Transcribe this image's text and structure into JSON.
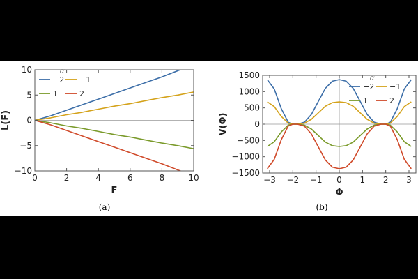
{
  "chart_data": [
    {
      "type": "line",
      "panel_label": "(a)",
      "xlabel": "F",
      "ylabel": "L(F)",
      "xlim": [
        0,
        10
      ],
      "ylim": [
        -10,
        10
      ],
      "xticks": [
        0,
        2,
        4,
        6,
        8,
        10
      ],
      "yticks": [
        -10,
        -5,
        0,
        5,
        10
      ],
      "x_tick_labels": [
        "0",
        "2",
        "4",
        "6",
        "8",
        "10"
      ],
      "y_tick_labels": [
        "−10",
        "−5",
        "0",
        "5",
        "10"
      ],
      "legend_title": "α",
      "legend_placement": "top-left",
      "series": [
        {
          "name": "−2",
          "color": "#3c6ea8",
          "x": [
            0,
            1,
            2,
            3,
            4,
            5,
            6,
            7,
            8,
            9,
            10
          ],
          "y": [
            0,
            0.9,
            2.0,
            3.1,
            4.2,
            5.3,
            6.4,
            7.5,
            8.6,
            9.8,
            11.0
          ]
        },
        {
          "name": "−1",
          "color": "#d4a21a",
          "x": [
            0,
            1,
            2,
            3,
            4,
            5,
            6,
            7,
            8,
            9,
            10
          ],
          "y": [
            0,
            0.5,
            1.1,
            1.6,
            2.2,
            2.8,
            3.3,
            3.9,
            4.5,
            5.0,
            5.6
          ]
        },
        {
          "name": "1",
          "color": "#7a9a2a",
          "x": [
            0,
            1,
            2,
            3,
            4,
            5,
            6,
            7,
            8,
            9,
            10
          ],
          "y": [
            0,
            -0.5,
            -1.1,
            -1.6,
            -2.2,
            -2.8,
            -3.3,
            -3.9,
            -4.5,
            -5.0,
            -5.6
          ]
        },
        {
          "name": "2",
          "color": "#d04a2a",
          "x": [
            0,
            1,
            2,
            3,
            4,
            5,
            6,
            7,
            8,
            9,
            10
          ],
          "y": [
            0,
            -0.9,
            -2.0,
            -3.1,
            -4.2,
            -5.3,
            -6.4,
            -7.5,
            -8.6,
            -9.8,
            -11.0
          ]
        }
      ]
    },
    {
      "type": "line",
      "panel_label": "(b)",
      "xlabel": "Φ",
      "ylabel": "V(Φ)",
      "xlim": [
        -3.3,
        3.3
      ],
      "ylim": [
        -1500,
        1500
      ],
      "xticks": [
        -3,
        -2,
        -1,
        0,
        1,
        2,
        3
      ],
      "yticks": [
        -1500,
        -1000,
        -500,
        0,
        500,
        1000,
        1500
      ],
      "x_tick_labels": [
        "−3",
        "−2",
        "−1",
        "0",
        "1",
        "2",
        "3"
      ],
      "y_tick_labels": [
        "−1500",
        "−1000",
        "−500",
        "0",
        "500",
        "1000",
        "1500"
      ],
      "legend_title": "α",
      "legend_placement": "top-right",
      "series": [
        {
          "name": "−2",
          "color": "#3c6ea8",
          "x": [
            -3.1,
            -2.8,
            -2.5,
            -2.2,
            -2.0,
            -1.8,
            -1.5,
            -1.2,
            -0.9,
            -0.6,
            -0.3,
            0,
            0.3,
            0.6,
            0.9,
            1.2,
            1.5,
            1.8,
            2.0,
            2.2,
            2.5,
            2.8,
            3.1
          ],
          "y": [
            1370,
            1080,
            480,
            60,
            0,
            0,
            60,
            300,
            700,
            1100,
            1320,
            1370,
            1320,
            1100,
            700,
            300,
            60,
            0,
            0,
            60,
            480,
            1080,
            1370
          ]
        },
        {
          "name": "−1",
          "color": "#d4a21a",
          "x": [
            -3.1,
            -2.8,
            -2.5,
            -2.2,
            -2.0,
            -1.8,
            -1.5,
            -1.2,
            -0.9,
            -0.6,
            -0.3,
            0,
            0.3,
            0.6,
            0.9,
            1.2,
            1.5,
            1.8,
            2.0,
            2.2,
            2.5,
            2.8,
            3.1
          ],
          "y": [
            685,
            540,
            240,
            30,
            0,
            0,
            30,
            150,
            350,
            550,
            660,
            685,
            660,
            550,
            350,
            150,
            30,
            0,
            0,
            30,
            240,
            540,
            685
          ]
        },
        {
          "name": "1",
          "color": "#7a9a2a",
          "x": [
            -3.1,
            -2.8,
            -2.5,
            -2.2,
            -2.0,
            -1.8,
            -1.5,
            -1.2,
            -0.9,
            -0.6,
            -0.3,
            0,
            0.3,
            0.6,
            0.9,
            1.2,
            1.5,
            1.8,
            2.0,
            2.2,
            2.5,
            2.8,
            3.1
          ],
          "y": [
            -685,
            -540,
            -240,
            -30,
            0,
            0,
            -30,
            -150,
            -350,
            -550,
            -660,
            -685,
            -660,
            -550,
            -350,
            -150,
            -30,
            0,
            0,
            -30,
            -240,
            -540,
            -685
          ]
        },
        {
          "name": "2",
          "color": "#d04a2a",
          "x": [
            -3.1,
            -2.8,
            -2.5,
            -2.2,
            -2.0,
            -1.8,
            -1.5,
            -1.2,
            -0.9,
            -0.6,
            -0.3,
            0,
            0.3,
            0.6,
            0.9,
            1.2,
            1.5,
            1.8,
            2.0,
            2.2,
            2.5,
            2.8,
            3.1
          ],
          "y": [
            -1370,
            -1080,
            -480,
            -60,
            0,
            0,
            -60,
            -300,
            -700,
            -1100,
            -1320,
            -1370,
            -1320,
            -1100,
            -700,
            -300,
            -60,
            0,
            0,
            -60,
            -480,
            -1080,
            -1370
          ]
        }
      ]
    }
  ]
}
